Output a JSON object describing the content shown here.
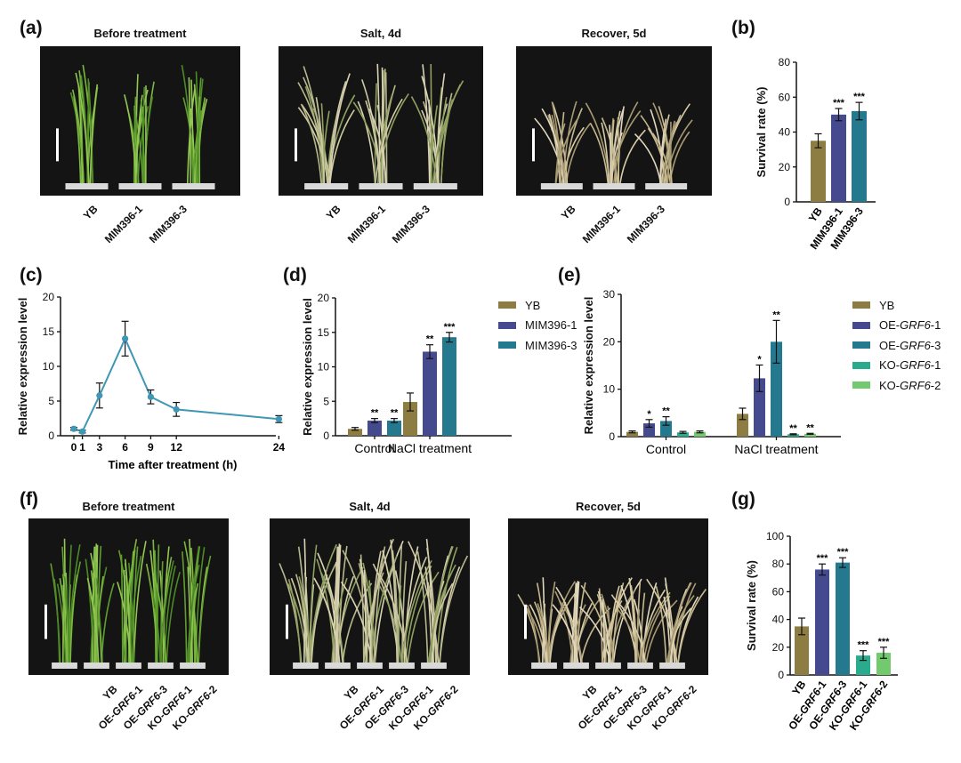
{
  "colors": {
    "YB": "#8d7d42",
    "MIM396-1": "#454a8e",
    "MIM396-3": "#25798f",
    "OE-GRF6-1": "#454a8e",
    "OE-GRF6-3": "#25798f",
    "KO-GRF6-1": "#2bab8e",
    "KO-GRF6-2": "#72c96e",
    "line": "#3f97b5"
  },
  "panels": {
    "a": {
      "letter": "(a)",
      "photos": [
        {
          "title": "Before treatment",
          "labels": [
            "YB",
            "MIM396-1",
            "MIM396-3"
          ],
          "state": "healthy"
        },
        {
          "title": "Salt, 4d",
          "labels": [
            "YB",
            "MIM396-1",
            "MIM396-3"
          ],
          "state": "salt"
        },
        {
          "title": "Recover, 5d",
          "labels": [
            "YB",
            "MIM396-1",
            "MIM396-3"
          ],
          "state": "recover"
        }
      ]
    },
    "f": {
      "letter": "(f)",
      "photos": [
        {
          "title": "Before treatment",
          "labels": [
            "YB",
            "OE-GRF6-1",
            "OE-GRF6-3",
            "KO-GRF6-1",
            "KO-GRF6-2"
          ],
          "state": "healthy"
        },
        {
          "title": "Salt, 4d",
          "labels": [
            "YB",
            "OE-GRF6-1",
            "OE-GRF6-3",
            "KO-GRF6-1",
            "KO-GRF6-2"
          ],
          "state": "salt"
        },
        {
          "title": "Recover, 5d",
          "labels": [
            "YB",
            "OE-GRF6-1",
            "OE-GRF6-3",
            "KO-GRF6-1",
            "KO-GRF6-2"
          ],
          "state": "recover"
        }
      ]
    },
    "b_letter": "(b)",
    "c_letter": "(c)",
    "d_letter": "(d)",
    "e_letter": "(e)",
    "g_letter": "(g)"
  },
  "chart_data": [
    {
      "id": "b",
      "type": "bar",
      "ylabel": "Survival rate (%)",
      "ylim": [
        0,
        80
      ],
      "yticks": [
        0,
        20,
        40,
        60,
        80
      ],
      "categories": [
        "YB",
        "MIM396-1",
        "MIM396-3"
      ],
      "values": [
        35,
        50,
        52
      ],
      "errors": [
        4,
        3.5,
        5
      ],
      "significance": [
        "",
        "***",
        "***"
      ]
    },
    {
      "id": "c",
      "type": "line",
      "xlabel": "Time after treatment (h)",
      "ylabel": "Relative expression level",
      "ylim": [
        0,
        20
      ],
      "yticks": [
        0,
        5,
        10,
        15,
        20
      ],
      "xticks": [
        0,
        1,
        3,
        6,
        9,
        12,
        24
      ],
      "x": [
        0,
        1,
        3,
        6,
        9,
        12,
        24
      ],
      "y": [
        1.0,
        0.6,
        5.8,
        14.0,
        5.6,
        3.8,
        2.4
      ],
      "errors": [
        0.2,
        0.2,
        1.8,
        2.5,
        1.0,
        1.0,
        0.5
      ]
    },
    {
      "id": "d",
      "type": "bar",
      "ylabel": "Relative expression level",
      "ylim": [
        0,
        20
      ],
      "yticks": [
        0,
        5,
        10,
        15,
        20
      ],
      "categories": [
        "Control",
        "NaCl treatment"
      ],
      "series": [
        {
          "name": "YB",
          "values": [
            1.0,
            4.9
          ],
          "errors": [
            0.2,
            1.3
          ],
          "significance": [
            "",
            ""
          ]
        },
        {
          "name": "MIM396-1",
          "values": [
            2.2,
            12.2
          ],
          "errors": [
            0.3,
            1.0
          ],
          "significance": [
            "**",
            "**"
          ]
        },
        {
          "name": "MIM396-3",
          "values": [
            2.2,
            14.3
          ],
          "errors": [
            0.3,
            0.7
          ],
          "significance": [
            "**",
            "***"
          ]
        }
      ]
    },
    {
      "id": "e",
      "type": "bar",
      "ylabel": "Relative expression level",
      "ylim": [
        0,
        30
      ],
      "yticks": [
        0,
        10,
        20,
        30
      ],
      "categories": [
        "Control",
        "NaCl treatment"
      ],
      "series": [
        {
          "name": "YB",
          "values": [
            1.0,
            4.8
          ],
          "errors": [
            0.2,
            1.2
          ],
          "significance": [
            "",
            ""
          ]
        },
        {
          "name": "OE-GRF6-1",
          "values": [
            2.8,
            12.3
          ],
          "errors": [
            0.8,
            2.8
          ],
          "significance": [
            "*",
            "*"
          ]
        },
        {
          "name": "OE-GRF6-3",
          "values": [
            3.3,
            20.0
          ],
          "errors": [
            0.9,
            4.5
          ],
          "significance": [
            "**",
            "**"
          ]
        },
        {
          "name": "KO-GRF6-1",
          "values": [
            0.9,
            0.5
          ],
          "errors": [
            0.2,
            0.1
          ],
          "significance": [
            "",
            "**"
          ]
        },
        {
          "name": "KO-GRF6-2",
          "values": [
            1.0,
            0.6
          ],
          "errors": [
            0.2,
            0.1
          ],
          "significance": [
            "",
            "**"
          ]
        }
      ],
      "legend_names": [
        {
          "pre": "YB",
          "it": "",
          "post": ""
        },
        {
          "pre": "OE-",
          "it": "GRF6",
          "post": "-1"
        },
        {
          "pre": "OE-",
          "it": "GRF6",
          "post": "-3"
        },
        {
          "pre": "KO-",
          "it": "GRF6",
          "post": "-1"
        },
        {
          "pre": "KO-",
          "it": "GRF6",
          "post": "-2"
        }
      ]
    },
    {
      "id": "g",
      "type": "bar",
      "ylabel": "Survival rate (%)",
      "ylim": [
        0,
        100
      ],
      "yticks": [
        0,
        20,
        40,
        60,
        80,
        100
      ],
      "categories": [
        "YB",
        "OE-GRF6-1",
        "OE-GRF6-3",
        "KO-GRF6-1",
        "KO-GRF6-2"
      ],
      "values": [
        35,
        76,
        81,
        14,
        16
      ],
      "errors": [
        6,
        4,
        3.5,
        3.5,
        4
      ],
      "significance": [
        "",
        "***",
        "***",
        "***",
        "***"
      ]
    }
  ]
}
